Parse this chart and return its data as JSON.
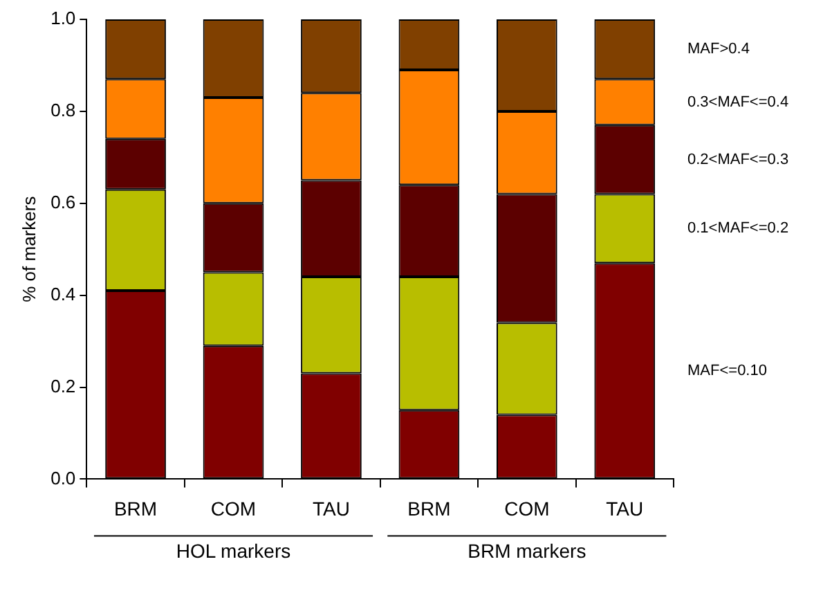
{
  "chart_data": {
    "type": "bar",
    "stacked": true,
    "ylabel": "% of markers",
    "categories": [
      "BRM",
      "COM",
      "TAU",
      "BRM",
      "COM",
      "TAU"
    ],
    "series": [
      {
        "name": "MAF<=0.10",
        "color": "#800000",
        "values": [
          0.41,
          0.29,
          0.23,
          0.15,
          0.14,
          0.47
        ]
      },
      {
        "name": "0.1<MAF<=0.2",
        "color": "#b8be00",
        "values": [
          0.22,
          0.16,
          0.21,
          0.29,
          0.2,
          0.15
        ]
      },
      {
        "name": "0.2<MAF<=0.3",
        "color": "#5c0000",
        "values": [
          0.11,
          0.15,
          0.21,
          0.2,
          0.28,
          0.15
        ]
      },
      {
        "name": "0.3<MAF<=0.4",
        "color": "#ff8000",
        "values": [
          0.13,
          0.23,
          0.19,
          0.25,
          0.18,
          0.1
        ]
      },
      {
        "name": "MAF>0.4",
        "color": "#804000",
        "values": [
          0.13,
          0.17,
          0.16,
          0.11,
          0.2,
          0.13
        ]
      }
    ],
    "ylim": [
      0,
      1
    ],
    "yticks": [
      {
        "value": 0,
        "label": "0.0"
      },
      {
        "value": 0.2,
        "label": "0.2"
      },
      {
        "value": 0.4,
        "label": "0.4"
      },
      {
        "value": 0.6,
        "label": "0.6"
      },
      {
        "value": 0.8,
        "label": "0.8"
      },
      {
        "value": 1,
        "label": "1.0"
      }
    ],
    "grid": false,
    "legend": false,
    "annotations": [
      "HOL markers",
      "BRM markers"
    ]
  }
}
